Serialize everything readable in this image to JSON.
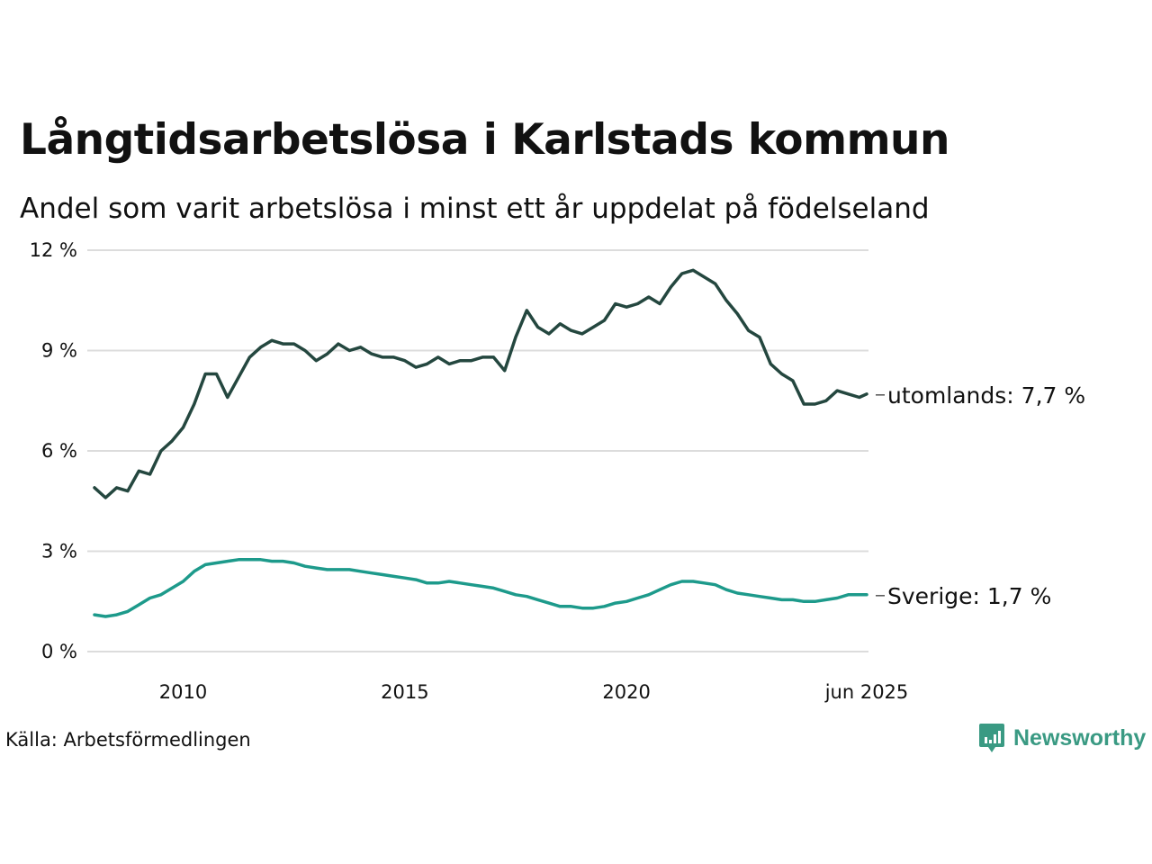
{
  "title": "Långtidsarbetslösa i Karlstads kommun",
  "subtitle": "Andel som varit arbetslösa i minst ett år uppdelat på födelseland",
  "source": "Källa: Arbetsförmedlingen",
  "brand": {
    "name": "Newsworthy",
    "icon": "newsworthy-logo-icon",
    "color": "#3a9a83"
  },
  "chart_data": {
    "type": "line",
    "x_range": [
      "2008-01",
      "2025-06"
    ],
    "ylim": [
      0,
      12
    ],
    "grid": true,
    "y_ticks": [
      {
        "value": 0,
        "label": "0 %"
      },
      {
        "value": 3,
        "label": "3 %"
      },
      {
        "value": 6,
        "label": "6 %"
      },
      {
        "value": 9,
        "label": "9 %"
      },
      {
        "value": 12,
        "label": "12 %"
      }
    ],
    "x_ticks": [
      {
        "date": "2010-01",
        "label": "2010"
      },
      {
        "date": "2015-01",
        "label": "2015"
      },
      {
        "date": "2020-01",
        "label": "2020"
      },
      {
        "date": "2025-06",
        "label": "jun 2025"
      }
    ],
    "series": [
      {
        "name": "utomlands",
        "end_label": "utomlands: 7,7 %",
        "color": "#24473f",
        "points": [
          [
            "2008-01",
            4.9
          ],
          [
            "2008-04",
            4.6
          ],
          [
            "2008-07",
            4.9
          ],
          [
            "2008-10",
            4.8
          ],
          [
            "2009-01",
            5.4
          ],
          [
            "2009-04",
            5.3
          ],
          [
            "2009-07",
            6.0
          ],
          [
            "2009-10",
            6.3
          ],
          [
            "2010-01",
            6.7
          ],
          [
            "2010-04",
            7.4
          ],
          [
            "2010-07",
            8.3
          ],
          [
            "2010-10",
            8.3
          ],
          [
            "2011-01",
            7.6
          ],
          [
            "2011-04",
            8.2
          ],
          [
            "2011-07",
            8.8
          ],
          [
            "2011-10",
            9.1
          ],
          [
            "2012-01",
            9.3
          ],
          [
            "2012-04",
            9.2
          ],
          [
            "2012-07",
            9.2
          ],
          [
            "2012-10",
            9.0
          ],
          [
            "2013-01",
            8.7
          ],
          [
            "2013-04",
            8.9
          ],
          [
            "2013-07",
            9.2
          ],
          [
            "2013-10",
            9.0
          ],
          [
            "2014-01",
            9.1
          ],
          [
            "2014-04",
            8.9
          ],
          [
            "2014-07",
            8.8
          ],
          [
            "2014-10",
            8.8
          ],
          [
            "2015-01",
            8.7
          ],
          [
            "2015-04",
            8.5
          ],
          [
            "2015-07",
            8.6
          ],
          [
            "2015-10",
            8.8
          ],
          [
            "2016-01",
            8.6
          ],
          [
            "2016-04",
            8.7
          ],
          [
            "2016-07",
            8.7
          ],
          [
            "2016-10",
            8.8
          ],
          [
            "2017-01",
            8.8
          ],
          [
            "2017-04",
            8.4
          ],
          [
            "2017-07",
            9.4
          ],
          [
            "2017-10",
            10.2
          ],
          [
            "2018-01",
            9.7
          ],
          [
            "2018-04",
            9.5
          ],
          [
            "2018-07",
            9.8
          ],
          [
            "2018-10",
            9.6
          ],
          [
            "2019-01",
            9.5
          ],
          [
            "2019-04",
            9.7
          ],
          [
            "2019-07",
            9.9
          ],
          [
            "2019-10",
            10.4
          ],
          [
            "2020-01",
            10.3
          ],
          [
            "2020-04",
            10.4
          ],
          [
            "2020-07",
            10.6
          ],
          [
            "2020-10",
            10.4
          ],
          [
            "2021-01",
            10.9
          ],
          [
            "2021-04",
            11.3
          ],
          [
            "2021-07",
            11.4
          ],
          [
            "2021-10",
            11.2
          ],
          [
            "2022-01",
            11.0
          ],
          [
            "2022-04",
            10.5
          ],
          [
            "2022-07",
            10.1
          ],
          [
            "2022-10",
            9.6
          ],
          [
            "2023-01",
            9.4
          ],
          [
            "2023-04",
            8.6
          ],
          [
            "2023-07",
            8.3
          ],
          [
            "2023-10",
            8.1
          ],
          [
            "2024-01",
            7.4
          ],
          [
            "2024-04",
            7.4
          ],
          [
            "2024-07",
            7.5
          ],
          [
            "2024-10",
            7.8
          ],
          [
            "2025-01",
            7.7
          ],
          [
            "2025-04",
            7.6
          ],
          [
            "2025-06",
            7.7
          ]
        ]
      },
      {
        "name": "Sverige",
        "end_label": "Sverige: 1,7 %",
        "color": "#1d9a8b",
        "points": [
          [
            "2008-01",
            1.1
          ],
          [
            "2008-04",
            1.05
          ],
          [
            "2008-07",
            1.1
          ],
          [
            "2008-10",
            1.2
          ],
          [
            "2009-01",
            1.4
          ],
          [
            "2009-04",
            1.6
          ],
          [
            "2009-07",
            1.7
          ],
          [
            "2009-10",
            1.9
          ],
          [
            "2010-01",
            2.1
          ],
          [
            "2010-04",
            2.4
          ],
          [
            "2010-07",
            2.6
          ],
          [
            "2010-10",
            2.65
          ],
          [
            "2011-01",
            2.7
          ],
          [
            "2011-04",
            2.75
          ],
          [
            "2011-07",
            2.75
          ],
          [
            "2011-10",
            2.75
          ],
          [
            "2012-01",
            2.7
          ],
          [
            "2012-04",
            2.7
          ],
          [
            "2012-07",
            2.65
          ],
          [
            "2012-10",
            2.55
          ],
          [
            "2013-01",
            2.5
          ],
          [
            "2013-04",
            2.45
          ],
          [
            "2013-07",
            2.45
          ],
          [
            "2013-10",
            2.45
          ],
          [
            "2014-01",
            2.4
          ],
          [
            "2014-04",
            2.35
          ],
          [
            "2014-07",
            2.3
          ],
          [
            "2014-10",
            2.25
          ],
          [
            "2015-01",
            2.2
          ],
          [
            "2015-04",
            2.15
          ],
          [
            "2015-07",
            2.05
          ],
          [
            "2015-10",
            2.05
          ],
          [
            "2016-01",
            2.1
          ],
          [
            "2016-04",
            2.05
          ],
          [
            "2016-07",
            2.0
          ],
          [
            "2016-10",
            1.95
          ],
          [
            "2017-01",
            1.9
          ],
          [
            "2017-04",
            1.8
          ],
          [
            "2017-07",
            1.7
          ],
          [
            "2017-10",
            1.65
          ],
          [
            "2018-01",
            1.55
          ],
          [
            "2018-04",
            1.45
          ],
          [
            "2018-07",
            1.35
          ],
          [
            "2018-10",
            1.35
          ],
          [
            "2019-01",
            1.3
          ],
          [
            "2019-04",
            1.3
          ],
          [
            "2019-07",
            1.35
          ],
          [
            "2019-10",
            1.45
          ],
          [
            "2020-01",
            1.5
          ],
          [
            "2020-04",
            1.6
          ],
          [
            "2020-07",
            1.7
          ],
          [
            "2020-10",
            1.85
          ],
          [
            "2021-01",
            2.0
          ],
          [
            "2021-04",
            2.1
          ],
          [
            "2021-07",
            2.1
          ],
          [
            "2021-10",
            2.05
          ],
          [
            "2022-01",
            2.0
          ],
          [
            "2022-04",
            1.85
          ],
          [
            "2022-07",
            1.75
          ],
          [
            "2022-10",
            1.7
          ],
          [
            "2023-01",
            1.65
          ],
          [
            "2023-04",
            1.6
          ],
          [
            "2023-07",
            1.55
          ],
          [
            "2023-10",
            1.55
          ],
          [
            "2024-01",
            1.5
          ],
          [
            "2024-04",
            1.5
          ],
          [
            "2024-07",
            1.55
          ],
          [
            "2024-10",
            1.6
          ],
          [
            "2025-01",
            1.7
          ],
          [
            "2025-04",
            1.7
          ],
          [
            "2025-06",
            1.7
          ]
        ]
      }
    ]
  }
}
